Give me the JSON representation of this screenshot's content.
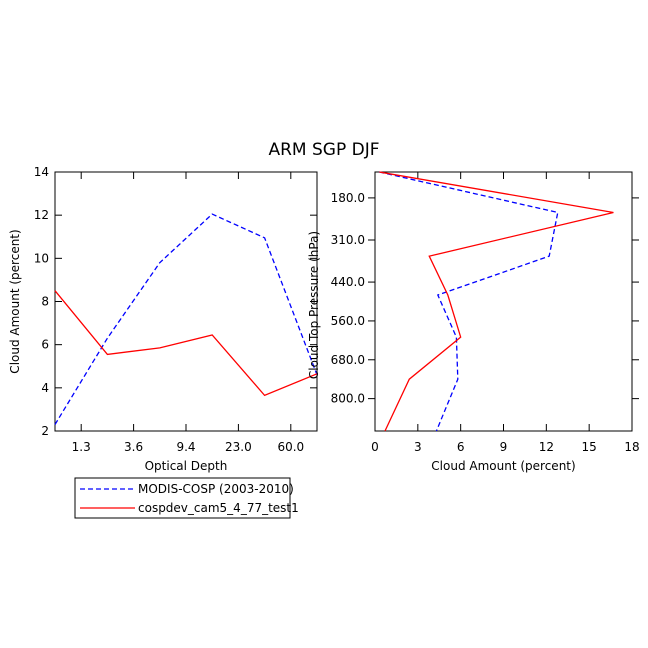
{
  "title": "ARM SGP DJF",
  "colors": {
    "obs": "#0000ff",
    "model": "#ff0000",
    "axis": "#000000"
  },
  "legend": [
    {
      "label": "MODIS-COSP (2003-2010)",
      "color": "#0000ff",
      "dash": true
    },
    {
      "label": "cospdev_cam5_4_77_test1",
      "color": "#ff0000",
      "dash": false
    }
  ],
  "chart_data": [
    {
      "type": "line",
      "title": "ARM SGP DJF",
      "xlabel": "Optical Depth",
      "ylabel": "Cloud Amount (percent)",
      "xlim": [
        0,
        5
      ],
      "ylim": [
        2,
        14
      ],
      "x_ticks": [
        0.5,
        1.5,
        2.5,
        3.5,
        4.5
      ],
      "x_tick_labels": [
        "1.3",
        "3.6",
        "9.4",
        "23.0",
        "60.0"
      ],
      "y_ticks": [
        2,
        4,
        6,
        8,
        10,
        12,
        14
      ],
      "y_tick_labels": [
        "2",
        "4",
        "6",
        "8",
        "10",
        "12",
        "14"
      ],
      "x": [
        0,
        1,
        2,
        3,
        4,
        5
      ],
      "series": [
        {
          "name": "MODIS-COSP (2003-2010)",
          "values": [
            2.3,
            6.3,
            9.8,
            12.05,
            10.95,
            4.6
          ]
        },
        {
          "name": "cospdev_cam5_4_77_test1",
          "values": [
            8.5,
            5.55,
            5.85,
            6.45,
            3.65,
            4.65
          ]
        }
      ]
    },
    {
      "type": "line",
      "xlabel": "Cloud Amount (percent)",
      "ylabel": "Cloud Top Pressure (hPa)",
      "xlim": [
        0,
        18
      ],
      "ylim": [
        100,
        900
      ],
      "y_reversed": true,
      "x_ticks": [
        0,
        3,
        6,
        9,
        12,
        15,
        18
      ],
      "x_tick_labels": [
        "0",
        "3",
        "6",
        "9",
        "12",
        "15",
        "18"
      ],
      "y_ticks": [
        180,
        310,
        440,
        560,
        680,
        800
      ],
      "y_tick_labels": [
        "180.0",
        "310.0",
        "440.0",
        "560.0",
        "680.0",
        "800.0"
      ],
      "pressure": [
        100,
        225,
        360,
        480,
        610,
        740,
        900
      ],
      "series": [
        {
          "name": "MODIS-COSP (2003-2010)",
          "values": [
            0.3,
            12.8,
            12.2,
            4.4,
            5.7,
            5.8,
            4.3
          ]
        },
        {
          "name": "cospdev_cam5_4_77_test1",
          "values": [
            0.3,
            16.7,
            3.8,
            5.1,
            6.0,
            2.4,
            0.7
          ]
        }
      ]
    }
  ]
}
